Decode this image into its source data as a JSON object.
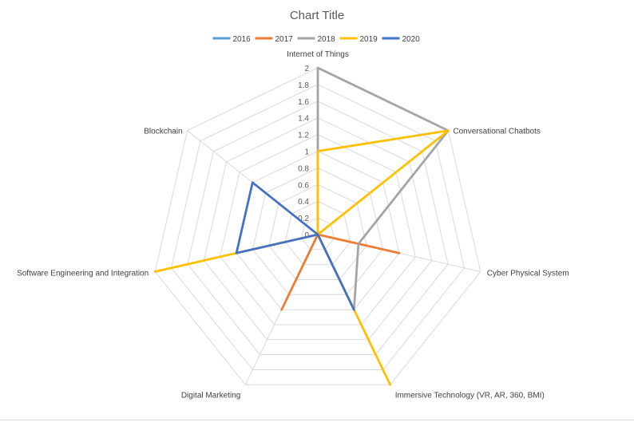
{
  "chart_data": {
    "type": "radar",
    "title": "Chart Title",
    "legend_position": "top",
    "categories": [
      "Internet of Things",
      "Conversational Chatbots",
      "Cyber Physical System",
      "Immersive Technology (VR, AR, 360, BMI)",
      "Digital Marketing",
      "Software Engineering and Integration",
      "Blockchain"
    ],
    "rlim": [
      0,
      2
    ],
    "tick_labels": [
      "0",
      "0.2",
      "0.4",
      "0.6",
      "0.8",
      "1",
      "1.2",
      "1.4",
      "1.6",
      "1.8",
      "2"
    ],
    "grid": true,
    "series": [
      {
        "name": "2016",
        "color": "#5b9bd5",
        "values": [
          0,
          0,
          0,
          0,
          0,
          0,
          0
        ]
      },
      {
        "name": "2017",
        "color": "#ed7d31",
        "values": [
          0,
          0,
          1,
          0,
          1,
          0,
          0
        ]
      },
      {
        "name": "2018",
        "color": "#a5a5a5",
        "values": [
          2,
          2,
          0.5,
          1,
          0,
          0,
          0
        ]
      },
      {
        "name": "2019",
        "color": "#ffc000",
        "values": [
          1,
          2,
          0,
          2,
          0,
          2,
          0
        ]
      },
      {
        "name": "2020",
        "color": "#4472c4",
        "values": [
          0,
          0,
          0,
          1,
          0,
          1,
          1
        ]
      }
    ]
  }
}
